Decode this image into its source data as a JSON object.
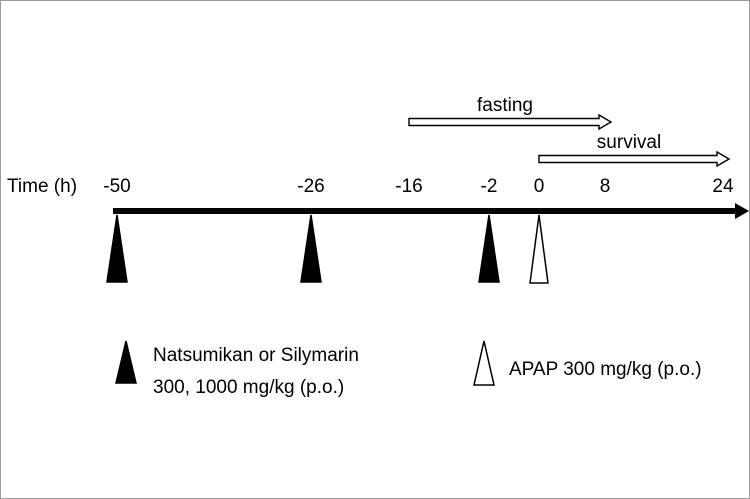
{
  "timeline": {
    "axis_label": "Time (h)",
    "ticks": [
      {
        "t": -50,
        "label": "-50"
      },
      {
        "t": -26,
        "label": "-26"
      },
      {
        "t": -16,
        "label": "-16"
      },
      {
        "t": -2,
        "label": "-2"
      },
      {
        "t": 0,
        "label": "0"
      },
      {
        "t": 8,
        "label": "8"
      },
      {
        "t": 24,
        "label": "24"
      }
    ]
  },
  "periods": [
    {
      "name": "fasting",
      "label": "fasting",
      "from": -16,
      "to": 8
    },
    {
      "name": "survival",
      "label": "survival",
      "from": 0,
      "to": 24
    }
  ],
  "doses": [
    {
      "t": -50,
      "kind": "pretreatment",
      "fill": "#000000"
    },
    {
      "t": -26,
      "kind": "pretreatment",
      "fill": "#000000"
    },
    {
      "t": -2,
      "kind": "pretreatment",
      "fill": "#000000"
    },
    {
      "t": 0,
      "kind": "apap",
      "fill": "#ffffff"
    }
  ],
  "legend": {
    "pretreatment": {
      "line1": "Natsumikan or Silymarin",
      "line2": "300, 1000 mg/kg (p.o.)",
      "fill": "#000000"
    },
    "apap": {
      "line1": "APAP 300 mg/kg (p.o.)",
      "fill": "#ffffff"
    }
  },
  "colors": {
    "axis": "#000000",
    "frame": "#9a9a9a"
  }
}
